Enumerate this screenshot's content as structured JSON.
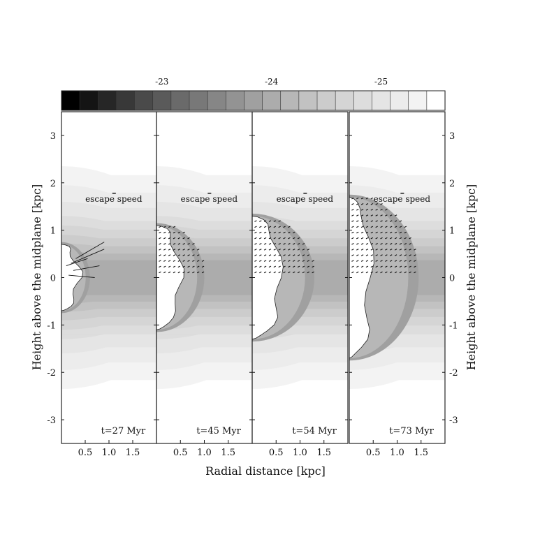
{
  "chart_data": {
    "type": "heatmap",
    "description_units": "log density (colorbar), kpc (axes)",
    "colorbar": {
      "levels": 21,
      "tick_labels": [
        "-23",
        "-24",
        "-25"
      ],
      "tick_level_index": [
        5,
        11,
        17
      ],
      "colors": [
        "#000000",
        "#141414",
        "#262626",
        "#383838",
        "#4a4a4a",
        "#5a5a5a",
        "#6a6a6a",
        "#787878",
        "#868686",
        "#939393",
        "#a0a0a0",
        "#acacac",
        "#b7b7b7",
        "#c2c2c2",
        "#cccccc",
        "#d5d5d5",
        "#dddddd",
        "#e5e5e5",
        "#ececec",
        "#f3f3f3",
        "#ffffff"
      ]
    },
    "xlabel": "Radial distance [kpc]",
    "ylabel_left": "Height above the midplane [kpc]",
    "ylabel_right": "Height above the midplane [kpc]",
    "xlim": [
      0,
      2.0
    ],
    "ylim": [
      -3.5,
      3.5
    ],
    "x_tick_labels": [
      "0.5",
      "1.0",
      "1.5"
    ],
    "x_ticks": [
      0.5,
      1.0,
      1.5
    ],
    "y_tick_labels": [
      "3",
      "2",
      "1",
      "0",
      "-1",
      "-2",
      "-3"
    ],
    "y_ticks": [
      3,
      2,
      1,
      0,
      -1,
      -2,
      -3
    ],
    "escape_label": "escape speed",
    "panels": [
      {
        "label": "t=27 Myr",
        "bubble_height": 0.7,
        "bubble_radius": 0.35,
        "shell_radius": 0.6,
        "arrow_fill": false
      },
      {
        "label": "t=45 Myr",
        "bubble_height": 1.1,
        "bubble_radius": 0.5,
        "shell_radius": 1.0,
        "arrow_fill": true
      },
      {
        "label": "t=54 Myr",
        "bubble_height": 1.3,
        "bubble_radius": 0.6,
        "shell_radius": 1.3,
        "arrow_fill": true
      },
      {
        "label": "t=73 Myr",
        "bubble_height": 1.7,
        "bubble_radius": 0.45,
        "shell_radius": 1.45,
        "arrow_fill": true
      }
    ]
  }
}
